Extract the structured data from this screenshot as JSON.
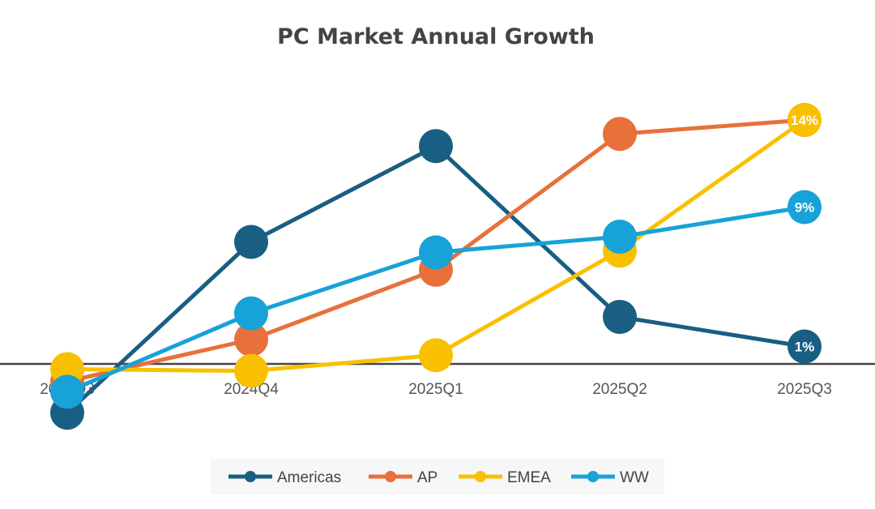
{
  "chart_data": {
    "type": "line",
    "title": "PC Market Annual Growth",
    "categories": [
      "2024Q3",
      "2024Q4",
      "2025Q1",
      "2025Q2",
      "2025Q3"
    ],
    "xlabel": "",
    "ylabel": "",
    "ylim": [
      -4,
      16
    ],
    "grid": false,
    "legend": "bottom",
    "series": [
      {
        "name": "Americas",
        "color": "#195e83",
        "values": [
          -2.8,
          7.0,
          12.5,
          2.7,
          1
        ],
        "last_label": "1%"
      },
      {
        "name": "AP",
        "color": "#e8703a",
        "values": [
          -1.0,
          1.4,
          5.4,
          13.2,
          14
        ],
        "last_label": ""
      },
      {
        "name": "EMEA",
        "color": "#f9c000",
        "values": [
          -0.3,
          -0.4,
          0.5,
          6.5,
          14
        ],
        "last_label": "14%"
      },
      {
        "name": "WW",
        "color": "#17a2d8",
        "values": [
          -1.6,
          2.9,
          6.4,
          7.3,
          9
        ],
        "last_label": "9%"
      }
    ]
  }
}
